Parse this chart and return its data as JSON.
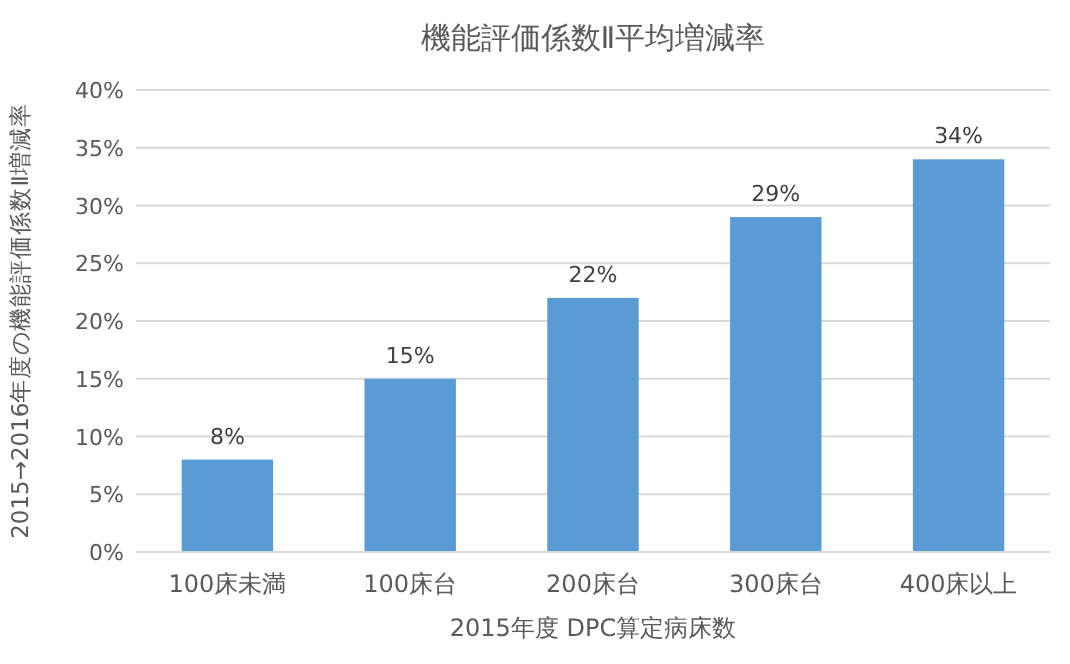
{
  "chart_data": {
    "type": "bar",
    "title": "機能評価係数Ⅱ平均増減率",
    "xlabel": "2015年度 DPC算定病床数",
    "ylabel": "2015→2016年度の機能評価係数Ⅱ増減率",
    "categories": [
      "100床未満",
      "100床台",
      "200床台",
      "300床台",
      "400床以上"
    ],
    "values": [
      8,
      15,
      22,
      29,
      34
    ],
    "color": "#5b9bd5",
    "value_labels": [
      "8%",
      "15%",
      "22%",
      "29%",
      "34%"
    ],
    "ylim": [
      0,
      40
    ],
    "yticks": [
      {
        "value": 0,
        "label": "0%"
      },
      {
        "value": 5,
        "label": "5%"
      },
      {
        "value": 10,
        "label": "10%"
      },
      {
        "value": 15,
        "label": "15%"
      },
      {
        "value": 20,
        "label": "20%"
      },
      {
        "value": 25,
        "label": "25%"
      },
      {
        "value": 30,
        "label": "30%"
      },
      {
        "value": 35,
        "label": "35%"
      },
      {
        "value": 40,
        "label": "40%"
      }
    ],
    "grid": "y"
  }
}
